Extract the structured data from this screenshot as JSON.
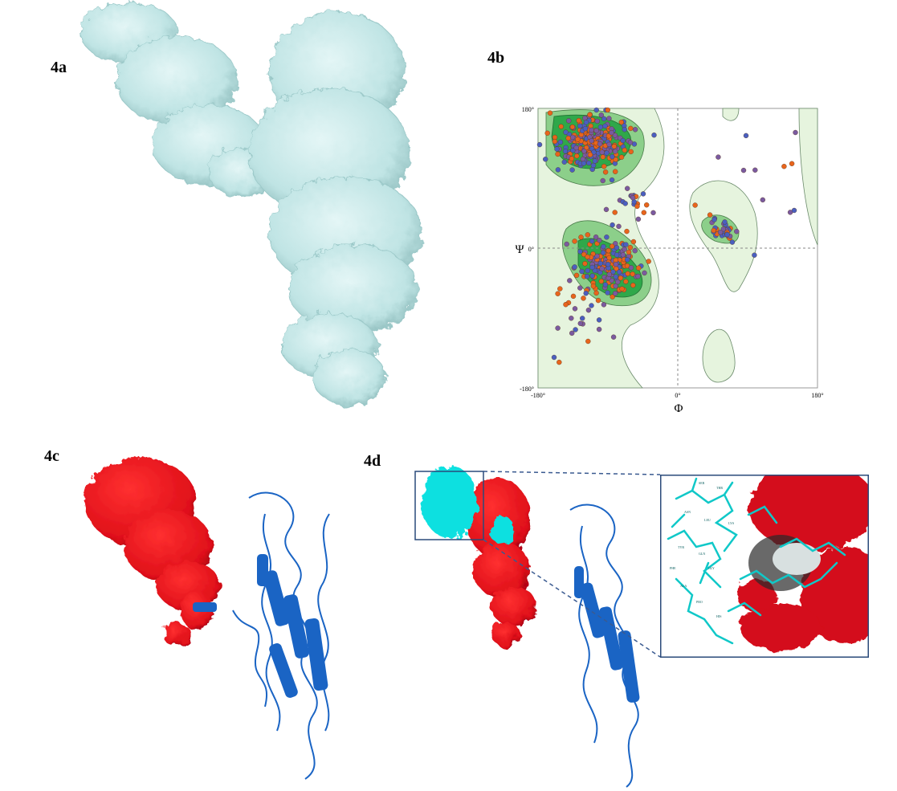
{
  "labels": {
    "a": "4a",
    "b": "4b",
    "c": "4c",
    "d": "4d"
  },
  "colors": {
    "surface_cyan": "#bfe4e4",
    "surface_cyan_dark": "#8fbdbd",
    "red_surface": "#e0101a",
    "blue_cartoon": "#1a64c4",
    "cyan_peptide": "#10e0e0",
    "ramachandran_core": "#2fa84a",
    "ramachandran_allowed": "#8ccf8a",
    "ramachandran_generous": "#e6f4de",
    "point_orange": "#e8641c",
    "point_blue": "#4a5fc0",
    "point_purple": "#7a5aa0"
  },
  "ramachandran": {
    "x_symbol": "Φ",
    "y_symbol": "Ψ",
    "x_ticks": [
      "-180°",
      "0°",
      "180°"
    ],
    "y_ticks": [
      "180°",
      "0°",
      "-180°"
    ]
  },
  "zoom_residue_labels": [
    "SER",
    "THR",
    "ASN",
    "LEU",
    "TYR",
    "GLN",
    "GLY",
    "ALA",
    "PRO",
    "HIS",
    "LYS",
    "PHE"
  ]
}
